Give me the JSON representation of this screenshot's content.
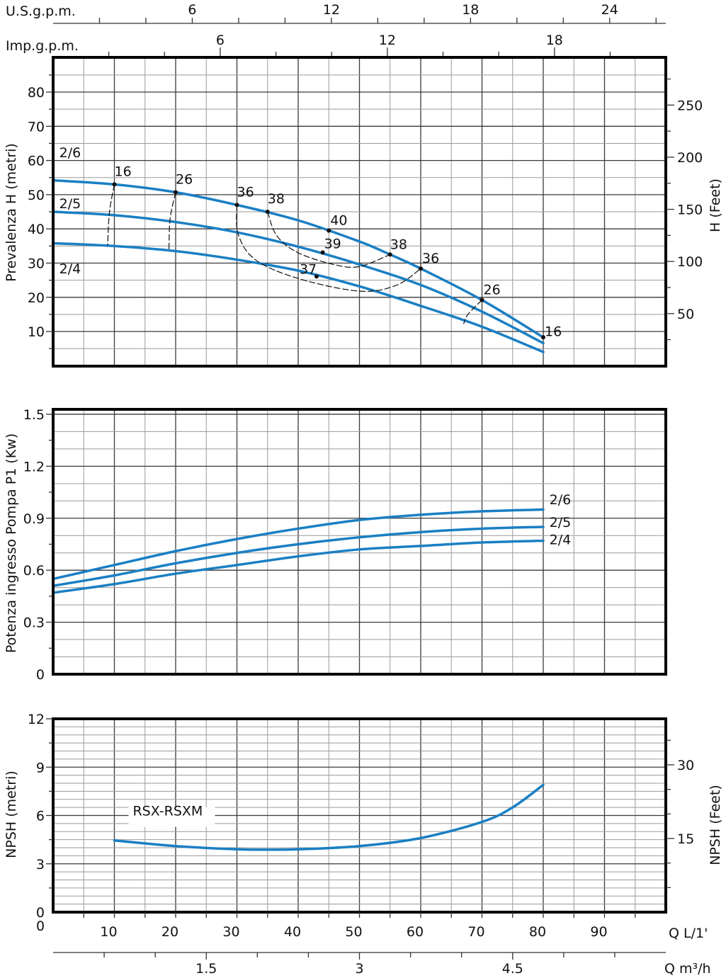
{
  "colors": {
    "curve": "#1a7fc4",
    "grid_minor": "#9a9a9a",
    "grid_major": "#3a3a3a",
    "frame": "#000000"
  },
  "top_axes": {
    "us_gpm": {
      "label": "U.S.g.p.m.",
      "ticks": [
        "6",
        "12",
        "18",
        "24"
      ]
    },
    "imp_gpm": {
      "label": "Imp.g.p.m.",
      "ticks": [
        "6",
        "12",
        "18"
      ]
    }
  },
  "bottom_axes": {
    "q_lmin": {
      "label": "Q L/1'",
      "ticks": [
        "0",
        "10",
        "20",
        "30",
        "40",
        "50",
        "60",
        "70",
        "80",
        "90"
      ]
    },
    "q_m3h": {
      "label": "Q m³/h",
      "ticks": [
        "1.5",
        "3",
        "4.5"
      ]
    }
  },
  "chart_data": [
    {
      "type": "line",
      "id": "head",
      "title": "",
      "xlabel": "Q L/1'",
      "ylabel": "Prevalenza H (metri)",
      "ylabel_right": "H (Feet)",
      "xlim": [
        0,
        100
      ],
      "ylim": [
        0,
        90
      ],
      "y_ticks": [
        "10",
        "20",
        "30",
        "40",
        "50",
        "60",
        "70",
        "80"
      ],
      "y_ticks_right": [
        "50",
        "100",
        "150",
        "200",
        "250"
      ],
      "grid": true,
      "series": [
        {
          "name": "2/6",
          "x": [
            0,
            10,
            20,
            30,
            40,
            50,
            55,
            60,
            70,
            80
          ],
          "y": [
            54.2,
            53.0,
            50.7,
            47.0,
            42.5,
            36.3,
            32.5,
            28.4,
            19.2,
            8.3
          ]
        },
        {
          "name": "2/5",
          "x": [
            0,
            10,
            20,
            30,
            40,
            50,
            60,
            70,
            80
          ],
          "y": [
            45.0,
            44.0,
            42.0,
            39.0,
            34.8,
            29.6,
            23.6,
            15.8,
            6.6
          ]
        },
        {
          "name": "2/4",
          "x": [
            0,
            10,
            20,
            30,
            40,
            50,
            60,
            70,
            80
          ],
          "y": [
            35.8,
            35.0,
            33.5,
            31.0,
            27.8,
            23.2,
            17.5,
            11.4,
            4.0
          ]
        }
      ],
      "curve_labels": [
        {
          "text": "2/6",
          "x": 1,
          "y": 61
        },
        {
          "text": "2/5",
          "x": 1,
          "y": 46
        },
        {
          "text": "2/4",
          "x": 1,
          "y": 27
        }
      ],
      "efficiency_points": [
        {
          "label": "16",
          "x": 10,
          "y": 53.0
        },
        {
          "label": "26",
          "x": 20,
          "y": 50.7
        },
        {
          "label": "36",
          "x": 30,
          "y": 47.0
        },
        {
          "label": "38",
          "x": 35,
          "y": 45.0
        },
        {
          "label": "40",
          "x": 45,
          "y": 39.5
        },
        {
          "label": "39",
          "x": 44,
          "y": 33.1
        },
        {
          "label": "38",
          "x": 55,
          "y": 32.5
        },
        {
          "label": "37",
          "x": 43,
          "y": 26.1
        },
        {
          "label": "36",
          "x": 60,
          "y": 28.4
        },
        {
          "label": "26",
          "x": 70,
          "y": 19.2
        },
        {
          "label": "16",
          "x": 80,
          "y": 8.3
        }
      ],
      "iso_efficiency_curves": [
        {
          "label": "16",
          "points": [
            [
              10,
              53.0
            ],
            [
              9.2,
              45
            ],
            [
              8.9,
              35.2
            ]
          ]
        },
        {
          "label": "26",
          "points": [
            [
              20,
              50.7
            ],
            [
              19.1,
              43
            ],
            [
              18.9,
              33.6
            ]
          ]
        },
        {
          "label": "36a",
          "points": [
            [
              30,
              47.0
            ],
            [
              30.2,
              38.5
            ],
            [
              33,
              31
            ],
            [
              40,
              25.5
            ],
            [
              50,
              21.8
            ],
            [
              56,
              23.5
            ],
            [
              60,
              28.4
            ]
          ]
        },
        {
          "label": "38a",
          "points": [
            [
              35,
              45.0
            ],
            [
              36.5,
              38
            ],
            [
              40,
              33
            ],
            [
              46,
              29.5
            ],
            [
              50,
              29.0
            ],
            [
              55,
              32.5
            ]
          ]
        },
        {
          "label": "26b",
          "points": [
            [
              70,
              19.2
            ],
            [
              67.7,
              15
            ],
            [
              67.0,
              12.2
            ]
          ]
        }
      ]
    },
    {
      "type": "line",
      "id": "power",
      "xlabel": "Q L/1'",
      "ylabel": "Potenza ingresso Pompa P1 (Kw)",
      "xlim": [
        0,
        100
      ],
      "ylim": [
        0,
        1.53
      ],
      "y_ticks": [
        "0",
        "0.3",
        "0.6",
        "0.9",
        "1.2",
        "1.5"
      ],
      "grid": true,
      "series": [
        {
          "name": "2/6",
          "x": [
            0,
            10,
            20,
            30,
            40,
            50,
            60,
            70,
            80
          ],
          "y": [
            0.55,
            0.63,
            0.71,
            0.78,
            0.84,
            0.89,
            0.92,
            0.94,
            0.95
          ]
        },
        {
          "name": "2/5",
          "x": [
            0,
            10,
            20,
            30,
            40,
            50,
            60,
            70,
            80
          ],
          "y": [
            0.51,
            0.57,
            0.64,
            0.7,
            0.75,
            0.79,
            0.82,
            0.84,
            0.85
          ]
        },
        {
          "name": "2/4",
          "x": [
            0,
            10,
            20,
            30,
            40,
            50,
            60,
            70,
            80
          ],
          "y": [
            0.47,
            0.52,
            0.58,
            0.63,
            0.68,
            0.72,
            0.74,
            0.76,
            0.77
          ]
        }
      ],
      "curve_labels": [
        {
          "text": "2/6",
          "x": 81,
          "y": 0.98
        },
        {
          "text": "2/5",
          "x": 81,
          "y": 0.85
        },
        {
          "text": "2/4",
          "x": 81,
          "y": 0.75
        }
      ]
    },
    {
      "type": "line",
      "id": "npsh",
      "xlabel": "Q L/1'",
      "ylabel": "NPSH (metri)",
      "ylabel_right": "NPSH (Feet)",
      "xlim": [
        0,
        100
      ],
      "ylim": [
        0,
        12
      ],
      "y_ticks": [
        "0",
        "3",
        "6",
        "9",
        "12"
      ],
      "y_ticks_right": [
        "15",
        "30"
      ],
      "grid": true,
      "series": [
        {
          "name": "RSX-RSXM",
          "x": [
            10,
            20,
            30,
            35,
            40,
            50,
            60,
            70,
            75,
            80
          ],
          "y": [
            4.45,
            4.1,
            3.9,
            3.88,
            3.9,
            4.1,
            4.6,
            5.6,
            6.5,
            7.9
          ]
        }
      ],
      "curve_labels": [
        {
          "text": "RSX-RSXM",
          "x": 13,
          "y": 6
        }
      ]
    }
  ]
}
